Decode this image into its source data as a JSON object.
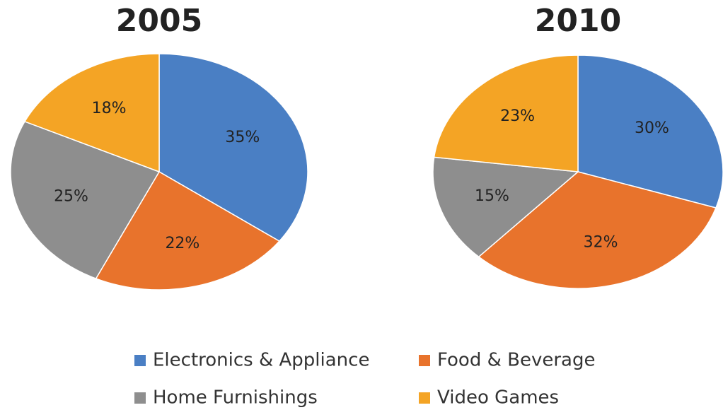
{
  "chart_data": {
    "type": "pie",
    "categories": [
      "Electronics & Appliance",
      "Food & Beverage",
      "Home Furnishings",
      "Video Games"
    ],
    "colors": [
      "#4a7fc4",
      "#e8732c",
      "#8e8e8e",
      "#f4a425"
    ],
    "series": [
      {
        "name": "2005",
        "values": [
          35,
          22,
          25,
          18
        ],
        "value_labels": [
          "35%",
          "22%",
          "25%",
          "18%"
        ]
      },
      {
        "name": "2010",
        "values": [
          30,
          32,
          15,
          23
        ],
        "value_labels": [
          "30%",
          "32%",
          "15%",
          "23%"
        ]
      }
    ]
  }
}
